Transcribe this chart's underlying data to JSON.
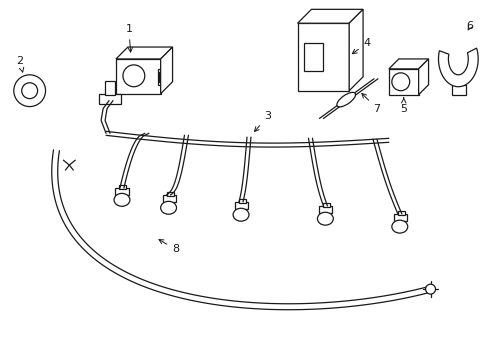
{
  "background_color": "#ffffff",
  "line_color": "#1a1a1a",
  "lw": 0.9,
  "fig_width": 4.89,
  "fig_height": 3.6,
  "dpi": 100
}
